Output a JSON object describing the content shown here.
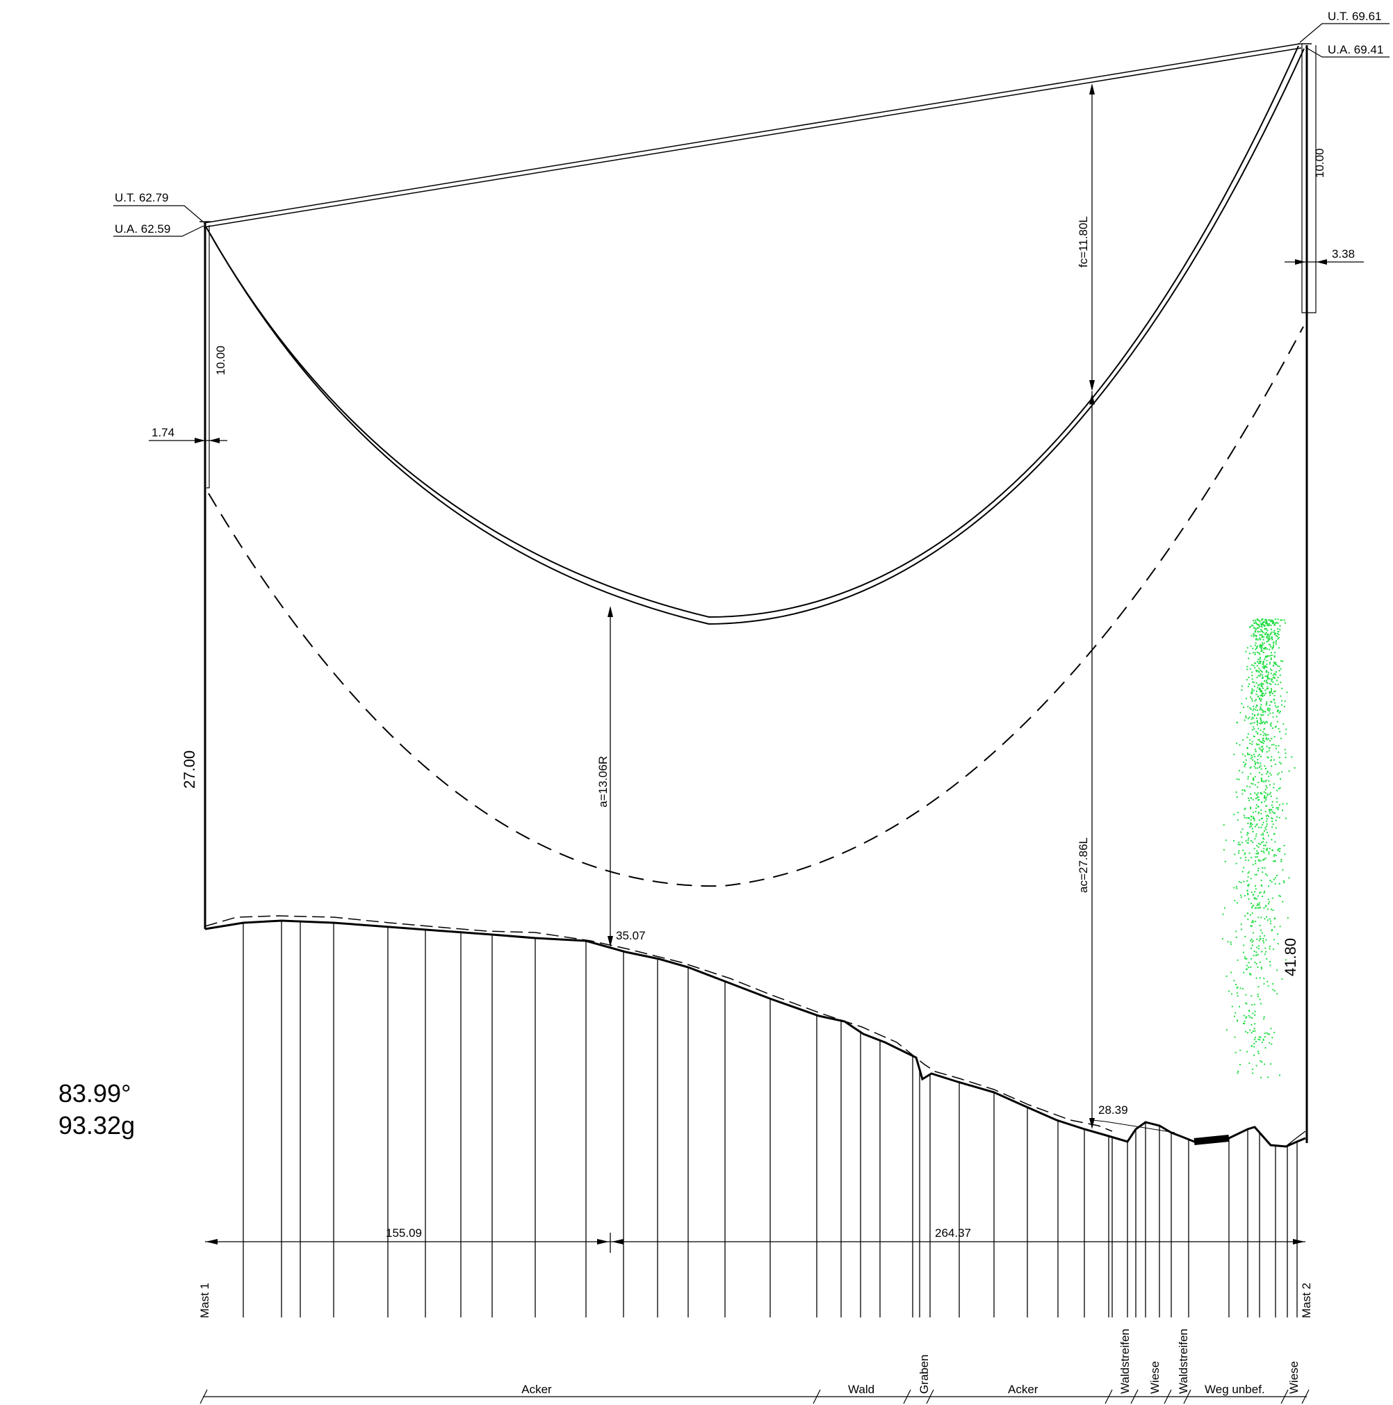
{
  "towers": {
    "mast1": {
      "label": "Mast 1",
      "ut_label": "U.T. 62.79",
      "ua_label": "U.A. 62.59",
      "top_dim": "10.00",
      "offset_dim": "1.74",
      "height_dim": "27.00"
    },
    "mast2": {
      "label": "Mast 2",
      "ut_label": "U.T. 69.61",
      "ua_label": "U.A. 69.41",
      "top_dim": "10.00",
      "offset_dim": "3.38",
      "height_dim": "41.80"
    }
  },
  "dimensions": {
    "fc": "fc=11.80L",
    "ac": "ac=27.86L",
    "a": "a=13.06R",
    "clearance_left": "35.07",
    "clearance_right": "28.39",
    "span_left": "155.09",
    "span_right": "264.37"
  },
  "angle": {
    "degrees": "83.99°",
    "gon": "93.32g"
  },
  "land_use": [
    {
      "label": "Acker",
      "rotated": false
    },
    {
      "label": "Wald",
      "rotated": false
    },
    {
      "label": "Graben",
      "rotated": true
    },
    {
      "label": "Acker",
      "rotated": false
    },
    {
      "label": "Waldstreifen",
      "rotated": true
    },
    {
      "label": "Wiese",
      "rotated": true
    },
    {
      "label": "Waldstreifen",
      "rotated": true
    },
    {
      "label": "Weg unbef.",
      "rotated": false
    },
    {
      "label": "Wiese",
      "rotated": true
    }
  ],
  "colors": {
    "line": "#000000",
    "vegetation_points": "#22dd44"
  }
}
